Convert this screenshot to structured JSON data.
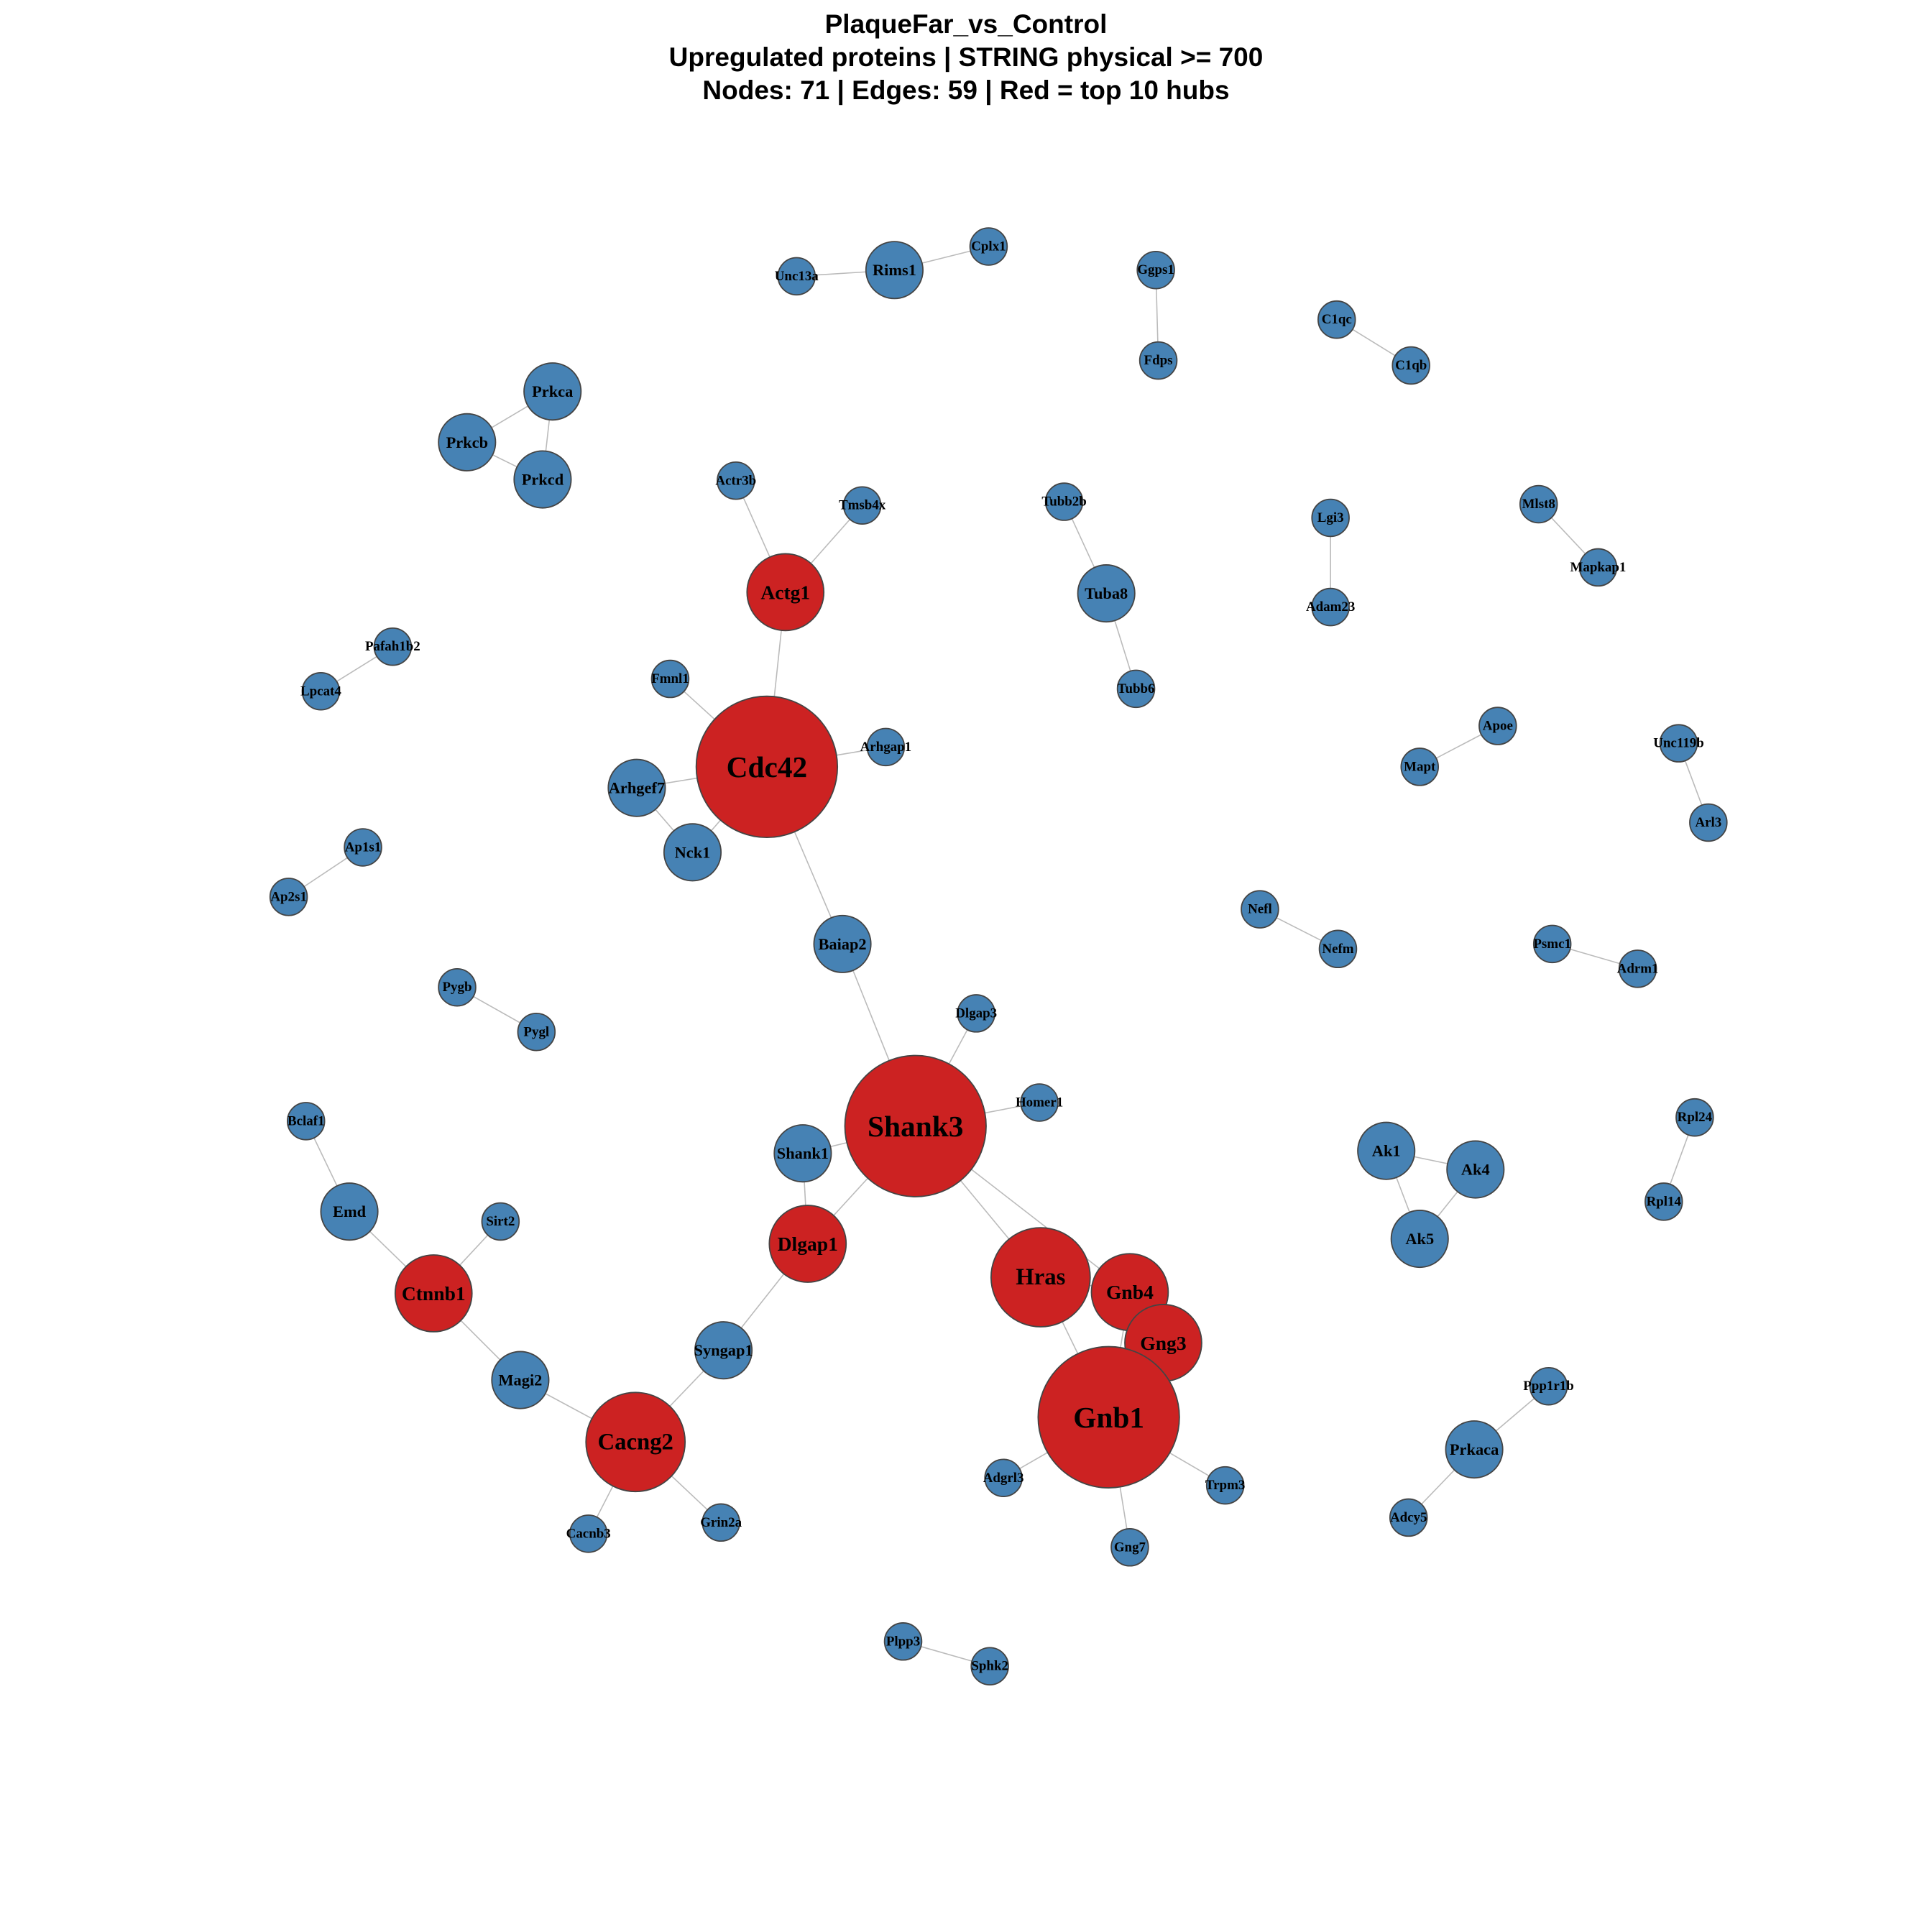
{
  "title": {
    "line1": "PlaqueFar_vs_Control",
    "line2": "Upregulated proteins | STRING physical >= 700",
    "line3": "Nodes: 71 | Edges: 59 | Red = top 10 hubs"
  },
  "colors": {
    "hub": "#CC2222",
    "node": "#4682B4",
    "edge": "#BBBBBB",
    "outline": "#444444"
  },
  "nodes": [
    {
      "id": "Unc13a",
      "hub": false,
      "size": "s"
    },
    {
      "id": "Rims1",
      "hub": false,
      "size": "l"
    },
    {
      "id": "Cplx1",
      "hub": false,
      "size": "s"
    },
    {
      "id": "Ggps1",
      "hub": false,
      "size": "s"
    },
    {
      "id": "Fdps",
      "hub": false,
      "size": "s"
    },
    {
      "id": "C1qc",
      "hub": false,
      "size": "s"
    },
    {
      "id": "C1qb",
      "hub": false,
      "size": "s"
    },
    {
      "id": "Prkca",
      "hub": false,
      "size": "l"
    },
    {
      "id": "Prkcb",
      "hub": false,
      "size": "l"
    },
    {
      "id": "Prkcd",
      "hub": false,
      "size": "l"
    },
    {
      "id": "Actr3b",
      "hub": false,
      "size": "s"
    },
    {
      "id": "Tmsb4x",
      "hub": false,
      "size": "s"
    },
    {
      "id": "Actg1",
      "hub": true,
      "size": "h1"
    },
    {
      "id": "Tubb2b",
      "hub": false,
      "size": "s"
    },
    {
      "id": "Tuba8",
      "hub": false,
      "size": "l"
    },
    {
      "id": "Tubb6",
      "hub": false,
      "size": "s"
    },
    {
      "id": "Lgi3",
      "hub": false,
      "size": "s"
    },
    {
      "id": "Adam23",
      "hub": false,
      "size": "s"
    },
    {
      "id": "Mlst8",
      "hub": false,
      "size": "s"
    },
    {
      "id": "Mapkap1",
      "hub": false,
      "size": "s"
    },
    {
      "id": "Pafah1b2",
      "hub": false,
      "size": "s"
    },
    {
      "id": "Lpcat4",
      "hub": false,
      "size": "s"
    },
    {
      "id": "Fmnl1",
      "hub": false,
      "size": "s"
    },
    {
      "id": "Cdc42",
      "hub": true,
      "size": "h3"
    },
    {
      "id": "Arhgap1",
      "hub": false,
      "size": "s"
    },
    {
      "id": "Arhgef7",
      "hub": false,
      "size": "l"
    },
    {
      "id": "Nck1",
      "hub": false,
      "size": "l"
    },
    {
      "id": "Apoe",
      "hub": false,
      "size": "s"
    },
    {
      "id": "Mapt",
      "hub": false,
      "size": "s"
    },
    {
      "id": "Unc119b",
      "hub": false,
      "size": "s"
    },
    {
      "id": "Arl3",
      "hub": false,
      "size": "s"
    },
    {
      "id": "Ap1s1",
      "hub": false,
      "size": "s"
    },
    {
      "id": "Ap2s1",
      "hub": false,
      "size": "s"
    },
    {
      "id": "Baiap2",
      "hub": false,
      "size": "l"
    },
    {
      "id": "Nefl",
      "hub": false,
      "size": "s"
    },
    {
      "id": "Nefm",
      "hub": false,
      "size": "s"
    },
    {
      "id": "Psmc1",
      "hub": false,
      "size": "s"
    },
    {
      "id": "Adrm1",
      "hub": false,
      "size": "s"
    },
    {
      "id": "Pygb",
      "hub": false,
      "size": "s"
    },
    {
      "id": "Pygl",
      "hub": false,
      "size": "s"
    },
    {
      "id": "Dlgap3",
      "hub": false,
      "size": "s"
    },
    {
      "id": "Homer1",
      "hub": false,
      "size": "s"
    },
    {
      "id": "Shank3",
      "hub": true,
      "size": "h3"
    },
    {
      "id": "Shank1",
      "hub": false,
      "size": "l"
    },
    {
      "id": "Bclaf1",
      "hub": false,
      "size": "s"
    },
    {
      "id": "Emd",
      "hub": false,
      "size": "l"
    },
    {
      "id": "Sirt2",
      "hub": false,
      "size": "s"
    },
    {
      "id": "Ak1",
      "hub": false,
      "size": "l"
    },
    {
      "id": "Ak4",
      "hub": false,
      "size": "l"
    },
    {
      "id": "Ak5",
      "hub": false,
      "size": "l"
    },
    {
      "id": "Rpl24",
      "hub": false,
      "size": "s"
    },
    {
      "id": "Rpl14",
      "hub": false,
      "size": "s"
    },
    {
      "id": "Dlgap1",
      "hub": true,
      "size": "h1"
    },
    {
      "id": "Hras",
      "hub": true,
      "size": "h2"
    },
    {
      "id": "Gnb4",
      "hub": true,
      "size": "h1"
    },
    {
      "id": "Gng3",
      "hub": true,
      "size": "h1"
    },
    {
      "id": "Ctnnb1",
      "hub": true,
      "size": "h1"
    },
    {
      "id": "Syngap1",
      "hub": false,
      "size": "l"
    },
    {
      "id": "Magi2",
      "hub": false,
      "size": "l"
    },
    {
      "id": "Gnb1",
      "hub": true,
      "size": "h3"
    },
    {
      "id": "Ppp1r1b",
      "hub": false,
      "size": "s"
    },
    {
      "id": "Prkaca",
      "hub": false,
      "size": "l"
    },
    {
      "id": "Cacng2",
      "hub": true,
      "size": "h2"
    },
    {
      "id": "Adgrl3",
      "hub": false,
      "size": "s"
    },
    {
      "id": "Trpm3",
      "hub": false,
      "size": "s"
    },
    {
      "id": "Adcy5",
      "hub": false,
      "size": "s"
    },
    {
      "id": "Cacnb3",
      "hub": false,
      "size": "s"
    },
    {
      "id": "Grin2a",
      "hub": false,
      "size": "s"
    },
    {
      "id": "Gng7",
      "hub": false,
      "size": "s"
    },
    {
      "id": "Plpp3",
      "hub": false,
      "size": "s"
    },
    {
      "id": "Sphk2",
      "hub": false,
      "size": "s"
    }
  ],
  "edges": [
    [
      "Unc13a",
      "Rims1"
    ],
    [
      "Rims1",
      "Cplx1"
    ],
    [
      "Ggps1",
      "Fdps"
    ],
    [
      "C1qc",
      "C1qb"
    ],
    [
      "Prkca",
      "Prkcb"
    ],
    [
      "Prkca",
      "Prkcd"
    ],
    [
      "Prkcb",
      "Prkcd"
    ],
    [
      "Actr3b",
      "Actg1"
    ],
    [
      "Tmsb4x",
      "Actg1"
    ],
    [
      "Actg1",
      "Cdc42"
    ],
    [
      "Tubb2b",
      "Tuba8"
    ],
    [
      "Tuba8",
      "Tubb6"
    ],
    [
      "Lgi3",
      "Adam23"
    ],
    [
      "Mlst8",
      "Mapkap1"
    ],
    [
      "Pafah1b2",
      "Lpcat4"
    ],
    [
      "Fmnl1",
      "Cdc42"
    ],
    [
      "Arhgap1",
      "Cdc42"
    ],
    [
      "Arhgef7",
      "Cdc42"
    ],
    [
      "Arhgef7",
      "Nck1"
    ],
    [
      "Nck1",
      "Cdc42"
    ],
    [
      "Cdc42",
      "Baiap2"
    ],
    [
      "Apoe",
      "Mapt"
    ],
    [
      "Unc119b",
      "Arl3"
    ],
    [
      "Ap1s1",
      "Ap2s1"
    ],
    [
      "Nefl",
      "Nefm"
    ],
    [
      "Psmc1",
      "Adrm1"
    ],
    [
      "Pygb",
      "Pygl"
    ],
    [
      "Baiap2",
      "Shank3"
    ],
    [
      "Dlgap3",
      "Shank3"
    ],
    [
      "Homer1",
      "Shank3"
    ],
    [
      "Shank1",
      "Shank3"
    ],
    [
      "Shank1",
      "Dlgap1"
    ],
    [
      "Shank3",
      "Dlgap1"
    ],
    [
      "Shank3",
      "Hras"
    ],
    [
      "Bclaf1",
      "Emd"
    ],
    [
      "Emd",
      "Ctnnb1"
    ],
    [
      "Sirt2",
      "Ctnnb1"
    ],
    [
      "Ctnnb1",
      "Magi2"
    ],
    [
      "Magi2",
      "Cacng2"
    ],
    [
      "Dlgap1",
      "Syngap1"
    ],
    [
      "Syngap1",
      "Cacng2"
    ],
    [
      "Cacng2",
      "Cacnb3"
    ],
    [
      "Cacng2",
      "Grin2a"
    ],
    [
      "Ak1",
      "Ak4"
    ],
    [
      "Ak1",
      "Ak5"
    ],
    [
      "Ak4",
      "Ak5"
    ],
    [
      "Rpl24",
      "Rpl14"
    ],
    [
      "Hras",
      "Gnb1"
    ],
    [
      "Gnb4",
      "Gng3"
    ],
    [
      "Gng3",
      "Gnb1"
    ],
    [
      "Gnb4",
      "Gnb1"
    ],
    [
      "Gnb1",
      "Adgrl3"
    ],
    [
      "Gnb1",
      "Trpm3"
    ],
    [
      "Gnb1",
      "Gng7"
    ],
    [
      "Ppp1r1b",
      "Prkaca"
    ],
    [
      "Prkaca",
      "Adcy5"
    ],
    [
      "Plpp3",
      "Sphk2"
    ],
    [
      "Hras",
      "Gnb4"
    ],
    [
      "Shank3",
      "Gnb4"
    ]
  ]
}
